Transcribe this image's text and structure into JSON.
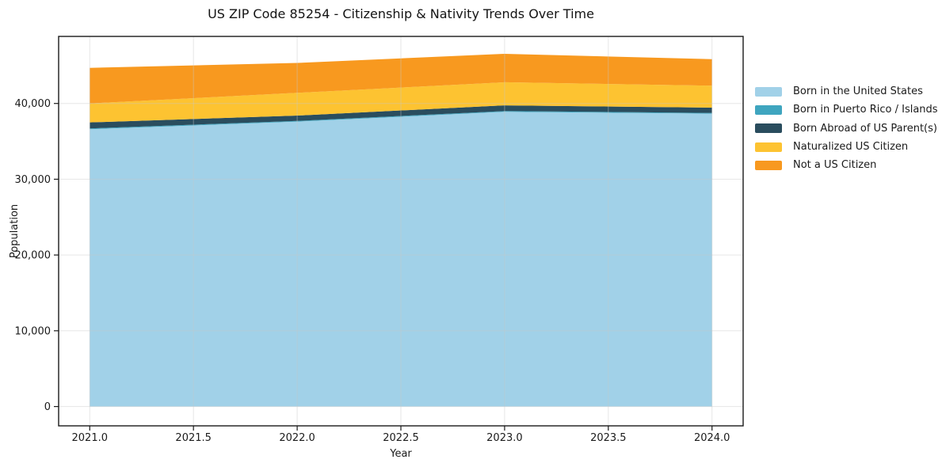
{
  "chart_data": {
    "type": "area",
    "stacked": true,
    "title": "US ZIP Code 85254 - Citizenship & Nativity Trends Over Time",
    "xlabel": "Year",
    "ylabel": "Population",
    "x": [
      2021,
      2022,
      2023,
      2024
    ],
    "series": [
      {
        "name": "Born in the United States",
        "color": "#a1d1e8",
        "values": [
          36600,
          37600,
          38900,
          38650
        ]
      },
      {
        "name": "Born in Puerto Rico / Islands",
        "color": "#3fa5bf",
        "values": [
          100,
          100,
          100,
          100
        ]
      },
      {
        "name": "Born Abroad of US Parent(s)",
        "color": "#2a4d5e",
        "values": [
          800,
          700,
          750,
          700
        ]
      },
      {
        "name": "Naturalized US Citizen",
        "color": "#fdc331",
        "values": [
          2500,
          3000,
          3050,
          2900
        ]
      },
      {
        "name": "Not a US Citizen",
        "color": "#f8991f",
        "values": [
          4700,
          3950,
          3750,
          3500
        ]
      }
    ],
    "x_ticks": {
      "values": [
        2021,
        2021.5,
        2022,
        2022.5,
        2023,
        2023.5,
        2024
      ],
      "labels": [
        "2021.0",
        "2021.5",
        "2022.0",
        "2022.5",
        "2023.0",
        "2023.5",
        "2024.0"
      ]
    },
    "y_ticks": {
      "values": [
        0,
        10000,
        20000,
        30000,
        40000
      ],
      "labels": [
        "0",
        "10,000",
        "20,000",
        "30,000",
        "40,000"
      ]
    },
    "xlim": [
      2020.85,
      2024.15
    ],
    "ylim": [
      -2550,
      48850
    ],
    "grid": true,
    "legend_position": "right",
    "colors": {
      "spine": "#1a1a1a",
      "grid": "#c8c8c8",
      "background": "#ffffff"
    }
  }
}
